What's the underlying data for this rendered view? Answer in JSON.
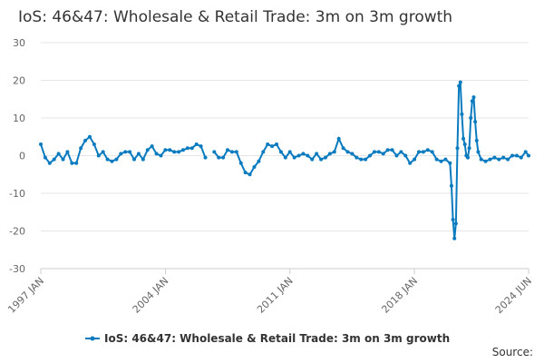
{
  "chart_data": {
    "type": "line",
    "title": "IoS: 46&47: Wholesale & Retail Trade: 3m on 3m growth",
    "source": "Source:",
    "x": [
      "1997 JAN",
      "1997 APR",
      "1997 JUL",
      "1997 OCT",
      "1998 JAN",
      "1998 APR",
      "1998 JUL",
      "1998 OCT",
      "1999 JAN",
      "1999 APR",
      "1999 JUL",
      "1999 OCT",
      "2000 JAN",
      "2000 APR",
      "2000 JUL",
      "2000 OCT",
      "2001 JAN",
      "2001 APR",
      "2001 JUL",
      "2001 OCT",
      "2002 JAN",
      "2002 APR",
      "2002 JUL",
      "2002 OCT",
      "2003 JAN",
      "2003 APR",
      "2003 JUL",
      "2003 OCT",
      "2004 JAN",
      "2004 APR",
      "2004 JUL",
      "2004 OCT",
      "2005 JAN",
      "2005 APR",
      "2005 JUL",
      "2005 OCT",
      "2006 JAN",
      "2006 APR",
      "2006 JUL",
      "2006 OCT",
      "2007 JAN",
      "2007 APR",
      "2007 JUL",
      "2007 OCT",
      "2008 JAN",
      "2008 APR",
      "2008 JUL",
      "2008 OCT",
      "2009 JAN",
      "2009 APR",
      "2009 JUL",
      "2009 OCT",
      "2010 JAN",
      "2010 APR",
      "2010 JUL",
      "2010 OCT",
      "2011 JAN",
      "2011 APR",
      "2011 JUL",
      "2011 OCT",
      "2012 JAN",
      "2012 APR",
      "2012 JUL",
      "2012 OCT",
      "2013 JAN",
      "2013 APR",
      "2013 JUL",
      "2013 OCT",
      "2014 JAN",
      "2014 APR",
      "2014 JUL",
      "2014 OCT",
      "2015 JAN",
      "2015 APR",
      "2015 JUL",
      "2015 OCT",
      "2016 JAN",
      "2016 APR",
      "2016 JUL",
      "2016 OCT",
      "2017 JAN",
      "2017 APR",
      "2017 JUL",
      "2017 OCT",
      "2018 JAN",
      "2018 APR",
      "2018 JUL",
      "2018 OCT",
      "2019 JAN",
      "2019 APR",
      "2019 JUL",
      "2019 OCT",
      "2020 JAN",
      "2020 FEB",
      "2020 MAR",
      "2020 APR",
      "2020 MAY",
      "2020 JUN",
      "2020 JUL",
      "2020 AUG",
      "2020 SEP",
      "2020 OCT",
      "2020 NOV",
      "2020 DEC",
      "2021 JAN",
      "2021 FEB",
      "2021 MAR",
      "2021 APR",
      "2021 MAY",
      "2021 JUN",
      "2021 JUL",
      "2021 AUG",
      "2021 OCT",
      "2022 JAN",
      "2022 APR",
      "2022 JUL",
      "2022 OCT",
      "2023 JAN",
      "2023 APR",
      "2023 JUL",
      "2023 OCT",
      "2024 JAN",
      "2024 APR",
      "2024 JUN"
    ],
    "series": [
      {
        "name": "IoS: 46&47: Wholesale & Retail Trade: 3m on 3m growth",
        "color": "#0b7bbf",
        "values": [
          3,
          -0.5,
          -2,
          -1,
          0.5,
          -1,
          1,
          -2,
          -2,
          2,
          4,
          5,
          3,
          0,
          1,
          -1,
          -1.5,
          -1,
          0.5,
          1,
          1,
          -1,
          0.5,
          -1,
          1.5,
          2.5,
          0.5,
          0,
          1.5,
          1.5,
          1,
          1,
          1.5,
          2,
          2,
          3,
          2.5,
          -0.5,
          null,
          1,
          -0.5,
          -0.5,
          1.5,
          1,
          1,
          -2,
          -4.5,
          -5,
          -3,
          -1.5,
          1,
          3,
          2.5,
          3,
          1,
          -0.5,
          1,
          -0.5,
          0,
          0.5,
          0,
          -1,
          0.5,
          -1,
          -0.5,
          0.5,
          1,
          4.5,
          2,
          1,
          0.5,
          -0.5,
          -1,
          -1,
          0,
          1,
          1,
          0.5,
          1.5,
          1.5,
          0,
          1,
          0,
          -2,
          -1,
          1,
          1,
          1.5,
          1,
          -1,
          -1.5,
          -1,
          -2,
          -8,
          -17,
          -22,
          -18,
          2,
          18.5,
          19.5,
          11,
          4.5,
          3,
          0,
          -0.5,
          2,
          10,
          14.5,
          15.5,
          9,
          4,
          1,
          -1,
          -1.5,
          -1,
          -0.5,
          -1,
          -0.5,
          -1,
          0,
          0,
          -0.5,
          1,
          0
        ]
      }
    ],
    "ylim": [
      -30,
      30
    ],
    "yticks": [
      -30,
      -20,
      -10,
      0,
      10,
      20,
      30
    ],
    "xticks": [
      "1997 JAN",
      "2004 JAN",
      "2011 JAN",
      "2018 JAN",
      "2024 JUN"
    ],
    "grid": true,
    "legend": "bottom"
  }
}
